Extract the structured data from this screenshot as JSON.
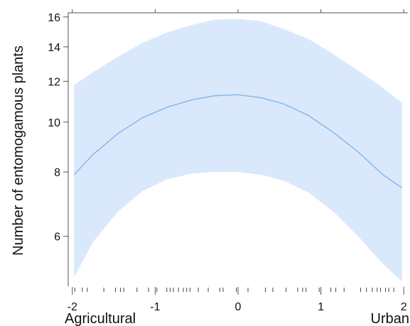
{
  "chart_data": {
    "type": "line",
    "ylabel": "Number of entomogamous plants",
    "x_end_labels": {
      "left": "Agricultural",
      "right": "Urban"
    },
    "xlim": [
      -2.05,
      2.05
    ],
    "ylim": [
      4.8,
      16.3
    ],
    "y_scale": "log",
    "x_ticks": [
      -2,
      -1,
      0,
      1,
      2
    ],
    "x_tick_labels": [
      "-2",
      "-1",
      "0",
      "1",
      "2"
    ],
    "y_ticks": [
      6,
      8,
      10,
      12,
      14,
      16
    ],
    "y_tick_labels": [
      "6",
      "8",
      "10",
      "12",
      "14",
      "16"
    ],
    "grid": false,
    "series": [
      {
        "x": [
          -1.98,
          -1.75,
          -1.45,
          -1.15,
          -0.85,
          -0.55,
          -0.28,
          0.0,
          0.28,
          0.55,
          0.85,
          1.15,
          1.45,
          1.75,
          1.98
        ],
        "fit": [
          7.9,
          8.65,
          9.5,
          10.2,
          10.7,
          11.05,
          11.25,
          11.3,
          11.15,
          10.85,
          10.3,
          9.55,
          8.75,
          7.9,
          7.45
        ],
        "lower": [
          5.0,
          5.85,
          6.7,
          7.35,
          7.75,
          7.95,
          8.0,
          8.0,
          7.9,
          7.7,
          7.3,
          6.7,
          6.0,
          5.3,
          4.9
        ],
        "upper": [
          11.8,
          12.5,
          13.4,
          14.25,
          14.95,
          15.45,
          15.8,
          15.85,
          15.7,
          15.15,
          14.5,
          13.55,
          12.6,
          11.65,
          10.9
        ]
      }
    ],
    "rug_x": [
      -1.97,
      -1.88,
      -1.82,
      -1.62,
      -1.48,
      -1.42,
      -1.38,
      -1.22,
      -1.08,
      -0.98,
      -0.86,
      -0.82,
      -0.78,
      -0.72,
      -0.66,
      -0.62,
      -0.58,
      -0.48,
      -0.36,
      -0.22,
      -0.18,
      -0.02,
      0.12,
      0.33,
      0.42,
      0.58,
      0.72,
      0.78,
      0.82,
      0.98,
      1.12,
      1.18,
      1.28,
      1.48,
      1.55,
      1.62,
      1.68,
      1.72,
      1.78,
      1.82,
      1.88
    ],
    "colors": {
      "band": "#dae8fb",
      "line": "#7ab3ea",
      "axis": "#555555",
      "rug": "#444444"
    }
  }
}
